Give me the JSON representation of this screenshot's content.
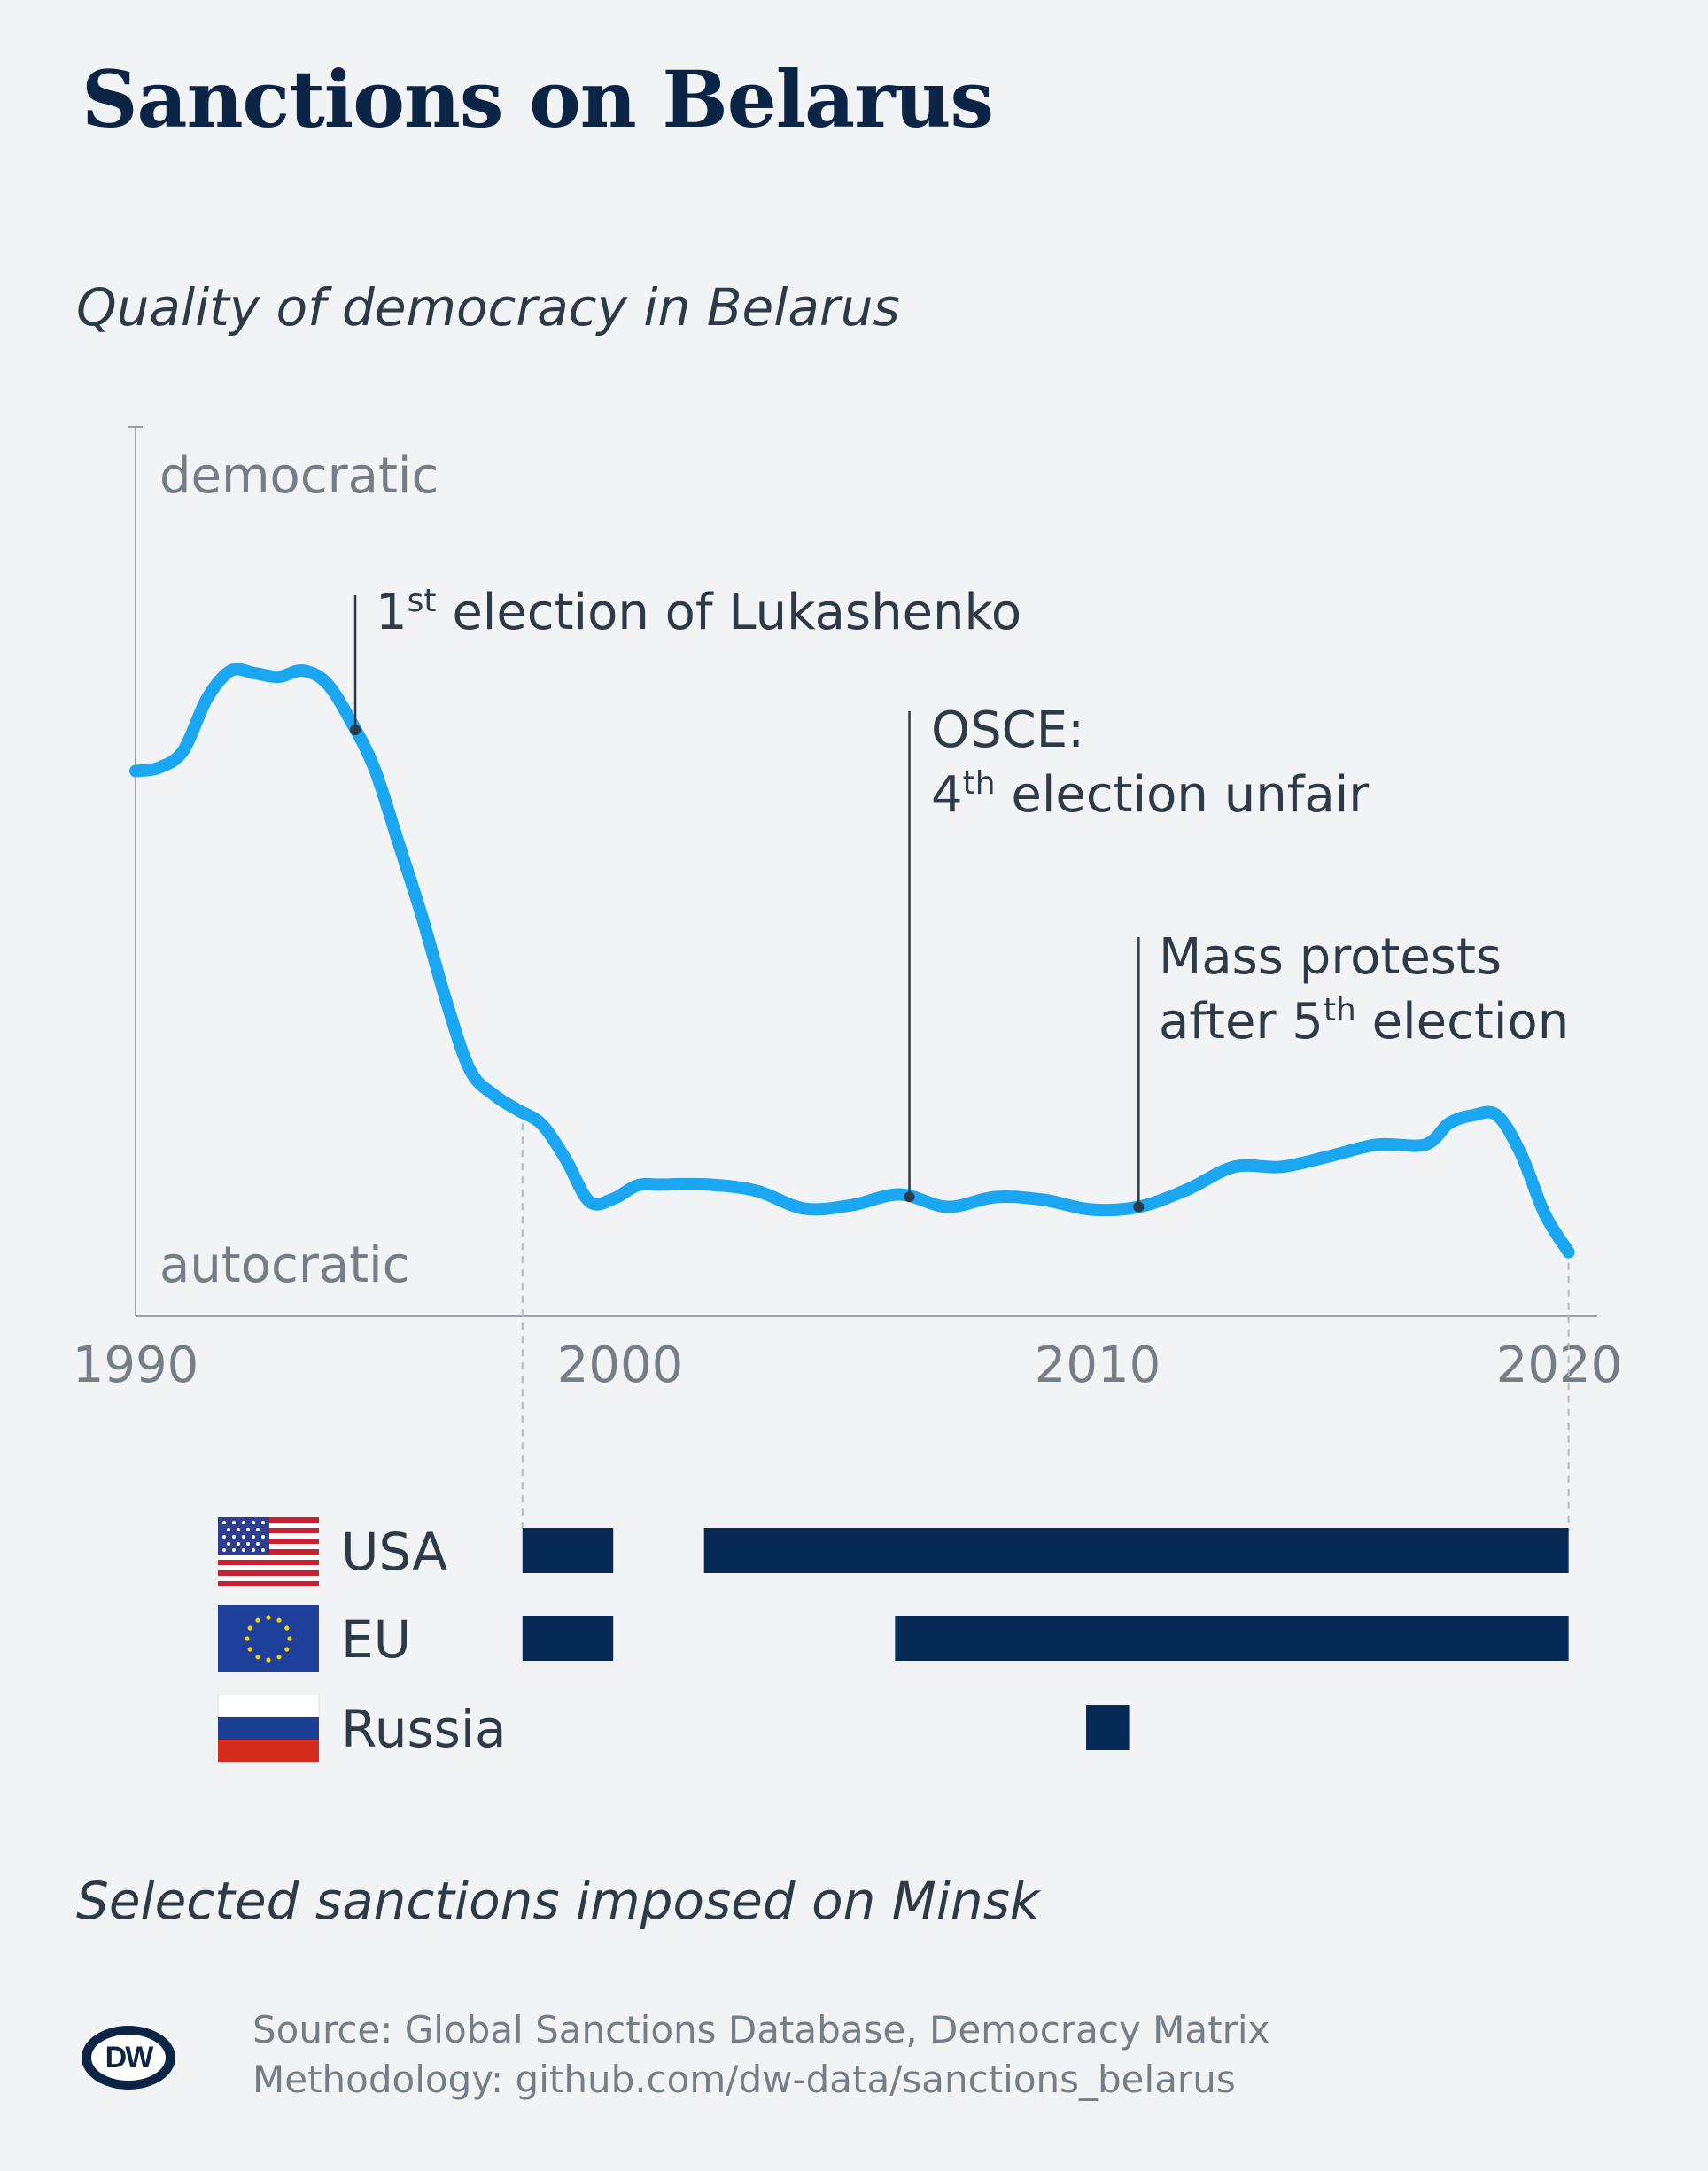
{
  "title": "Sanctions on Belarus",
  "subtitle": "Quality of democracy in Belarus",
  "footnote": "Selected sanctions imposed on Minsk",
  "source_line": "Source: Global Sanctions Database, Democracy Matrix",
  "methodology_line": "Methodology: github.com/dw-data/sanctions_belarus",
  "logo_text": "DW",
  "colors": {
    "line": "#1ba6f2",
    "bar": "#062a55",
    "text": "#2e3a47",
    "axis": "#757d86"
  },
  "chart_data": [
    {
      "type": "line",
      "title": "Quality of democracy in Belarus",
      "ylabel_top": "democratic",
      "ylabel_bottom": "autocratic",
      "xlim": [
        1990,
        2020.6
      ],
      "ylim": [
        0,
        100
      ],
      "x_ticks": [
        "1990",
        "2000",
        "2010",
        "2020"
      ],
      "x": [
        1990,
        1990.5,
        1991,
        1991.5,
        1992,
        1992.5,
        1993,
        1993.5,
        1994,
        1994.5,
        1995,
        1995.5,
        1996,
        1996.5,
        1997,
        1997.5,
        1998,
        1998.5,
        1999,
        1999.5,
        2000,
        2000.5,
        2001,
        2002,
        2003,
        2004,
        2005,
        2006,
        2007,
        2008,
        2009,
        2010,
        2011,
        2012,
        2013,
        2014,
        2015,
        2016,
        2017,
        2017.5,
        2018,
        2018.5,
        2019,
        2019.5,
        2020
      ],
      "y": [
        61.3,
        61.7,
        63.6,
        69.5,
        72.6,
        72.3,
        71.9,
        72.6,
        71.2,
        67.0,
        61.6,
        53.3,
        44.9,
        35.5,
        27.7,
        24.9,
        23.2,
        21.6,
        17.7,
        12.9,
        13.2,
        14.7,
        14.8,
        14.8,
        14.1,
        12.1,
        12.5,
        13.7,
        12.3,
        13.4,
        13.1,
        12.0,
        12.3,
        14.2,
        16.8,
        16.8,
        18.0,
        19.3,
        19.3,
        21.7,
        22.6,
        22.6,
        18.3,
        11.5,
        7.2
      ],
      "annotations": [
        {
          "x": 1994.6,
          "label": "1st election of Lukashenko",
          "lines": [
            "1",
            "st",
            " election of Lukashenko"
          ]
        },
        {
          "x": 2006.2,
          "label": "OSCE: 4th election unfair",
          "lines": [
            "OSCE:",
            "4",
            "th",
            " election unfair"
          ]
        },
        {
          "x": 2011.0,
          "label": "Mass protests after 5th election",
          "lines": [
            "Mass protests",
            "after 5",
            "th",
            " election"
          ]
        }
      ],
      "guides": [
        1998.1,
        2020
      ]
    },
    {
      "type": "bar",
      "title": "Selected sanctions imposed on Minsk",
      "series": [
        {
          "name": "USA",
          "flag": "us",
          "periods": [
            [
              1998.1,
              2000.0
            ],
            [
              2001.9,
              2020
            ]
          ]
        },
        {
          "name": "EU",
          "flag": "eu",
          "periods": [
            [
              1998.1,
              2000.0
            ],
            [
              2005.9,
              2020
            ]
          ]
        },
        {
          "name": "Russia",
          "flag": "ru",
          "periods": [
            [
              2009.9,
              2010.8
            ]
          ]
        }
      ]
    }
  ]
}
